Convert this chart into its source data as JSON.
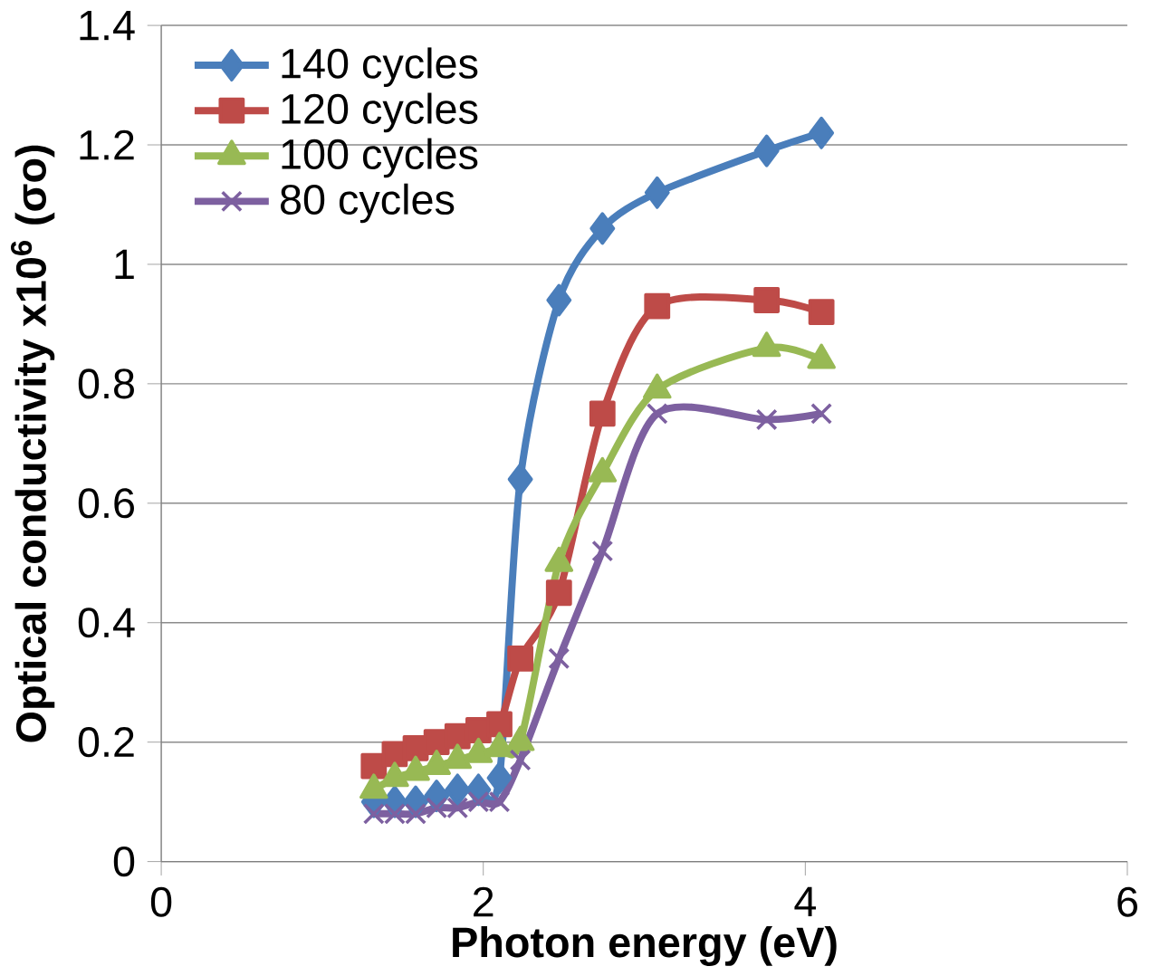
{
  "chart_data": {
    "type": "line",
    "xlabel": "Photon energy (eV)",
    "ylabel": "Optical conductivity x10$^{6}$ (σo)",
    "x": [
      1.32,
      1.45,
      1.58,
      1.71,
      1.84,
      1.97,
      2.1,
      2.23,
      2.47,
      2.74,
      3.08,
      3.76,
      4.1
    ],
    "series": [
      {
        "name": "140 cycles",
        "color": "#4a7ebb",
        "marker": "diamond",
        "values": [
          0.1,
          0.1,
          0.1,
          0.11,
          0.12,
          0.12,
          0.14,
          0.64,
          0.94,
          1.06,
          1.12,
          1.19,
          1.22
        ]
      },
      {
        "name": "120 cycles",
        "color": "#be4b48",
        "marker": "square",
        "values": [
          0.16,
          0.18,
          0.19,
          0.2,
          0.21,
          0.22,
          0.23,
          0.34,
          0.45,
          0.75,
          0.93,
          0.94,
          0.92
        ]
      },
      {
        "name": "100 cycles",
        "color": "#98b954",
        "marker": "triangle",
        "values": [
          0.12,
          0.14,
          0.15,
          0.16,
          0.17,
          0.18,
          0.19,
          0.2,
          0.5,
          0.65,
          0.79,
          0.86,
          0.84
        ]
      },
      {
        "name": "80 cycles",
        "color": "#7d60a0",
        "marker": "cross",
        "values": [
          0.08,
          0.08,
          0.08,
          0.09,
          0.09,
          0.1,
          0.1,
          0.17,
          0.34,
          0.52,
          0.75,
          0.74,
          0.75
        ]
      }
    ],
    "xlim": [
      0,
      6
    ],
    "xticks": [
      0,
      2,
      4,
      6
    ],
    "ylim": [
      0,
      1.4
    ],
    "yticks": [
      0,
      0.2,
      0.4,
      0.6,
      0.8,
      1,
      1.2,
      1.4
    ],
    "grid": "y",
    "legend": "top left",
    "line_style": "solid"
  }
}
